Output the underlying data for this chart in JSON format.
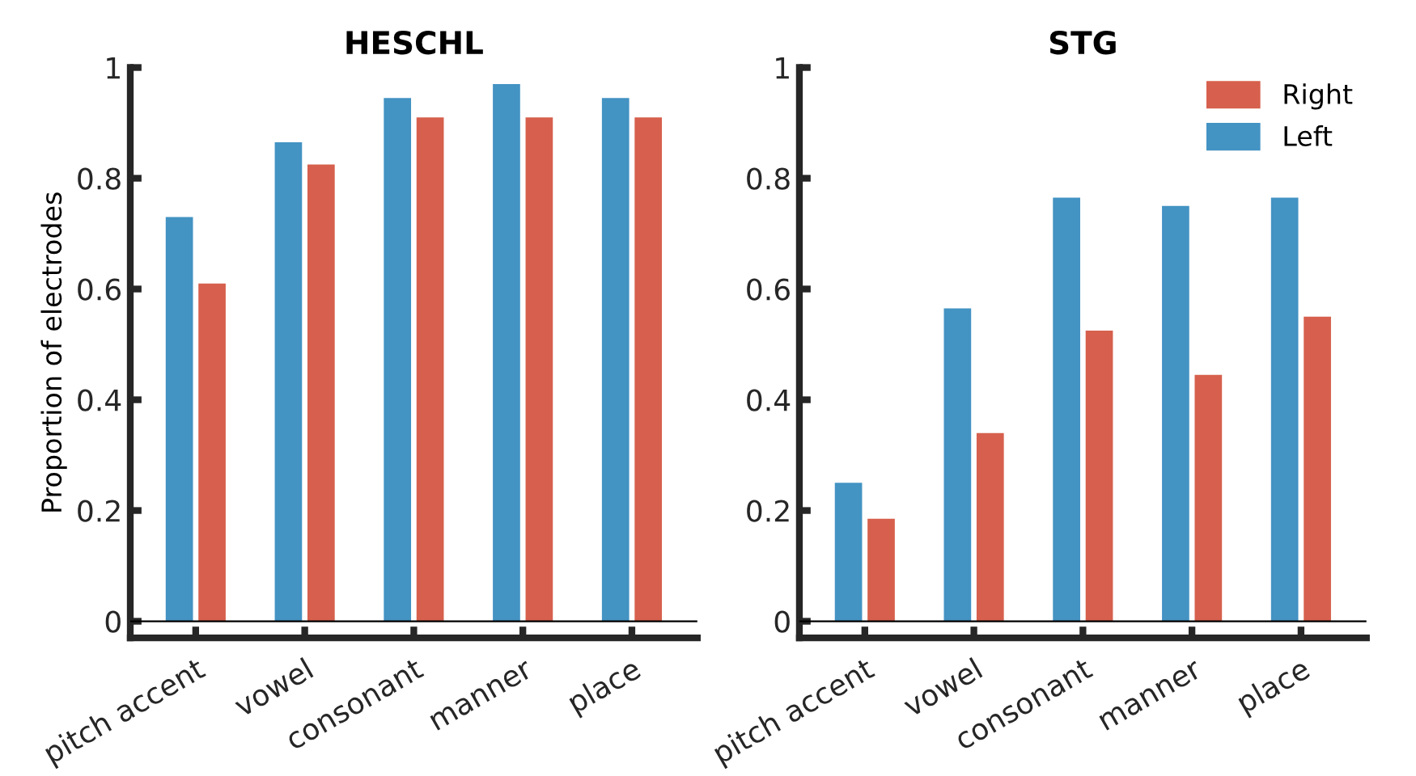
{
  "chart_data": [
    {
      "type": "bar",
      "title": "HESCHL",
      "ylabel": "Proportion of electrodes",
      "categories": [
        "pitch accent",
        "vowel",
        "consonant",
        "manner",
        "place"
      ],
      "series": [
        {
          "color": "#4393c3",
          "values": [
            0.73,
            0.865,
            0.945,
            0.97,
            0.945
          ]
        },
        {
          "color": "#d6604d",
          "values": [
            0.61,
            0.825,
            0.91,
            0.91,
            0.91
          ]
        }
      ],
      "ylim": [
        -0.03,
        1
      ],
      "yticks": [
        0,
        0.2,
        0.4,
        0.6,
        0.8,
        1
      ],
      "ref_lines": [
        {
          "axis": "y",
          "value": 0
        }
      ],
      "grid": false,
      "legend": false
    },
    {
      "type": "bar",
      "title": "STG",
      "categories": [
        "pitch accent",
        "vowel",
        "consonant",
        "manner",
        "place"
      ],
      "series": [
        {
          "name": "Left",
          "color": "#4393c3",
          "values": [
            0.25,
            0.565,
            0.765,
            0.75,
            0.765
          ]
        },
        {
          "name": "Right",
          "color": "#d6604d",
          "values": [
            0.185,
            0.34,
            0.525,
            0.445,
            0.55
          ]
        }
      ],
      "ylim": [
        -0.03,
        1
      ],
      "yticks": [
        0,
        0.2,
        0.4,
        0.6,
        0.8,
        1
      ],
      "ref_lines": [
        {
          "axis": "y",
          "value": 0
        }
      ],
      "grid": false,
      "legend": "top right"
    }
  ]
}
